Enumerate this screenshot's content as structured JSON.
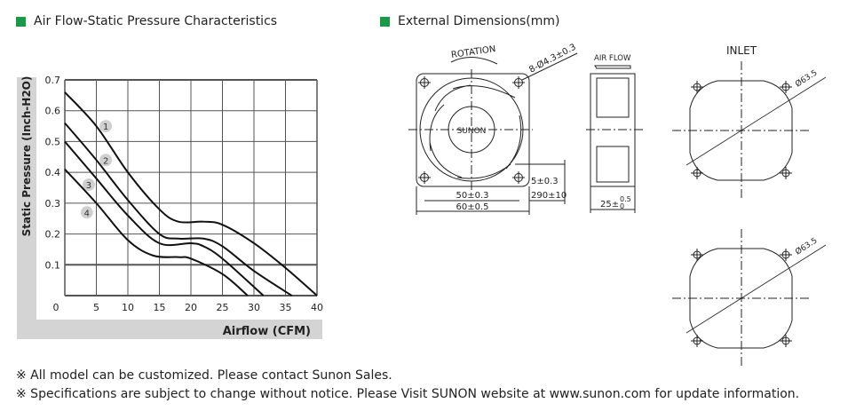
{
  "left_header": "Air Flow-Static Pressure Characteristics",
  "right_header": "External Dimensions(mm)",
  "accent_color": "#1a9a48",
  "chart_data": {
    "type": "line",
    "xlabel": "Airflow (CFM)",
    "ylabel": "Static Pressure (Inch-H2O)",
    "xlim": [
      0,
      40
    ],
    "ylim": [
      0,
      0.7
    ],
    "xticks": [
      "0",
      "5",
      "10",
      "15",
      "20",
      "25",
      "30",
      "35",
      "40"
    ],
    "yticks": [
      "0.1",
      "0.2",
      "0.3",
      "0.4",
      "0.5",
      "0.6",
      "0.7"
    ],
    "grid": true,
    "series": [
      {
        "name": "1",
        "label_at": [
          6.5,
          0.55
        ],
        "points": [
          [
            0,
            0.66
          ],
          [
            5,
            0.55
          ],
          [
            10,
            0.4
          ],
          [
            15,
            0.28
          ],
          [
            18,
            0.24
          ],
          [
            22,
            0.24
          ],
          [
            25,
            0.23
          ],
          [
            30,
            0.17
          ],
          [
            35,
            0.09
          ],
          [
            40,
            0
          ]
        ]
      },
      {
        "name": "2",
        "label_at": [
          6.5,
          0.44
        ],
        "points": [
          [
            0,
            0.56
          ],
          [
            5,
            0.44
          ],
          [
            10,
            0.31
          ],
          [
            15,
            0.2
          ],
          [
            18,
            0.185
          ],
          [
            22,
            0.185
          ],
          [
            25,
            0.16
          ],
          [
            30,
            0.08
          ],
          [
            36,
            0
          ]
        ]
      },
      {
        "name": "3",
        "label_at": [
          3.8,
          0.36
        ],
        "points": [
          [
            0,
            0.5
          ],
          [
            5,
            0.38
          ],
          [
            10,
            0.26
          ],
          [
            15,
            0.17
          ],
          [
            20,
            0.17
          ],
          [
            22,
            0.16
          ],
          [
            25,
            0.12
          ],
          [
            31.5,
            0
          ]
        ]
      },
      {
        "name": "4",
        "label_at": [
          3.5,
          0.27
        ],
        "points": [
          [
            0,
            0.41
          ],
          [
            5,
            0.3
          ],
          [
            10,
            0.18
          ],
          [
            14,
            0.13
          ],
          [
            18,
            0.125
          ],
          [
            20,
            0.12
          ],
          [
            25,
            0.07
          ],
          [
            29,
            0
          ]
        ]
      }
    ]
  },
  "drawing": {
    "rotation": "ROTATION",
    "holes": "8-Ø4.3±0.3",
    "brand": "SUNON",
    "air_flow": "AIR FLOW",
    "dim_50": "50±0.3",
    "dim_60": "60±0.5",
    "dim_5": "5±0.3",
    "dim_290": "290±10",
    "dim_25": "25±",
    "dim_25_tol_top": "0.5",
    "dim_25_tol_bot": "0",
    "inlet": "INLET",
    "dia1": "Ø63.5",
    "dia2": "Ø63.5"
  },
  "notes": [
    "※ All model can be customized. Please contact Sunon Sales.",
    "※ Specifications are subject to change without notice. Please  Visit SUNON website at  www.sunon.com for update information."
  ]
}
